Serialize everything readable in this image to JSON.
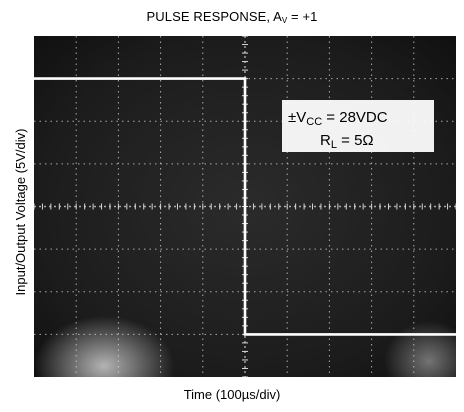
{
  "chart_data": {
    "type": "line",
    "title": "PULSE RESPONSE, A",
    "title_subscript": "V",
    "title_suffix": " = +1",
    "xlabel": "Time (100µs/div)",
    "ylabel": "Input/Output Voltage (5V/div)",
    "grid": true,
    "x_divisions": 10,
    "y_divisions": 8,
    "xlim": [
      0,
      10
    ],
    "ylim": [
      -4,
      4
    ],
    "series": [
      {
        "x": [
          0,
          5.0,
          5.0,
          10
        ],
        "y": [
          3.0,
          3.0,
          -3.0,
          -3.0
        ]
      }
    ],
    "annotations": {
      "supply_prefix": "±V",
      "supply_subscript": "CC",
      "supply_suffix": " = 28VDC",
      "load_prefix": "R",
      "load_subscript": "L",
      "load_suffix": " = 5Ω"
    },
    "colors": {
      "screen": "#1a1a1a",
      "grid": "#d8d8d8",
      "trace": "#ffffff"
    }
  }
}
